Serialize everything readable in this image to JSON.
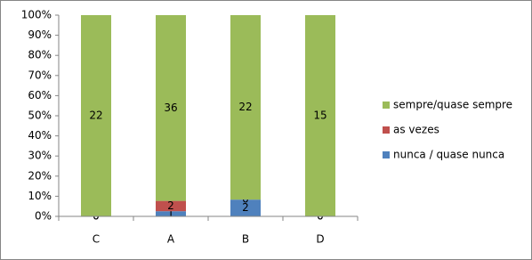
{
  "chart_data": {
    "type": "bar",
    "stacking": "percent",
    "categories": [
      "C",
      "A",
      "B",
      "D"
    ],
    "series": [
      {
        "name": "nunca / quase nunca",
        "color": "#4f81bd",
        "values": [
          0,
          1,
          2,
          0
        ]
      },
      {
        "name": "as vezes",
        "color": "#c0504d",
        "values": [
          0,
          2,
          0,
          0
        ]
      },
      {
        "name": "sempre/quase sempre",
        "color": "#9bbb59",
        "values": [
          22,
          36,
          22,
          15
        ]
      }
    ],
    "ylim": [
      0,
      100
    ],
    "yticks": [
      {
        "value": 0,
        "label": "0%"
      },
      {
        "value": 10,
        "label": "10%"
      },
      {
        "value": 20,
        "label": "20%"
      },
      {
        "value": 30,
        "label": "30%"
      },
      {
        "value": 40,
        "label": "40%"
      },
      {
        "value": 50,
        "label": "50%"
      },
      {
        "value": 60,
        "label": "60%"
      },
      {
        "value": 70,
        "label": "70%"
      },
      {
        "value": 80,
        "label": "80%"
      },
      {
        "value": 90,
        "label": "90%"
      },
      {
        "value": 100,
        "label": "100%"
      }
    ],
    "grid": false,
    "legend": "right"
  }
}
